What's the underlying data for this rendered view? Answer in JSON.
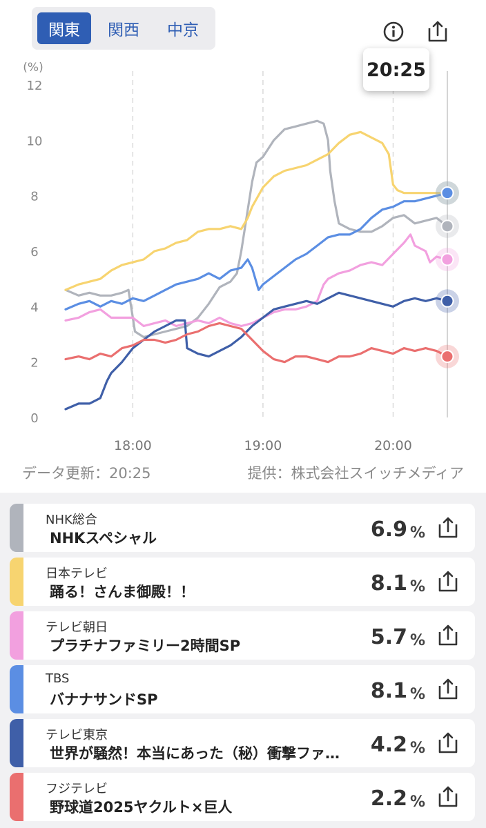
{
  "tabs": [
    {
      "label": "関東",
      "active": true
    },
    {
      "label": "関西",
      "active": false
    },
    {
      "label": "中京",
      "active": false
    }
  ],
  "icons": {
    "info": "info-icon",
    "share": "share-icon"
  },
  "tooltip_time": "20:25",
  "update_text": "データ更新：20:25",
  "provider_text": "提供：株式会社スイッチメディア",
  "chart_data": {
    "type": "line",
    "ylabel": "(%)",
    "ylim": [
      0,
      12
    ],
    "yticks": [
      0,
      2,
      4,
      6,
      8,
      10,
      12
    ],
    "xlim": [
      "17:29",
      "20:25"
    ],
    "xticks": [
      "18:00",
      "19:00",
      "20:00"
    ],
    "grid": "dashed vertical at hours",
    "cursor_time": "20:25",
    "series": [
      {
        "key": "nhk",
        "color": "#b0b4bc",
        "final": 6.9,
        "points": [
          [
            "17:29",
            4.6
          ],
          [
            "17:35",
            4.4
          ],
          [
            "17:40",
            4.5
          ],
          [
            "17:45",
            4.4
          ],
          [
            "17:50",
            4.4
          ],
          [
            "17:55",
            4.5
          ],
          [
            "17:58",
            4.6
          ],
          [
            "18:00",
            3.6
          ],
          [
            "18:01",
            3.1
          ],
          [
            "18:05",
            2.9
          ],
          [
            "18:10",
            3.0
          ],
          [
            "18:15",
            3.1
          ],
          [
            "18:20",
            3.2
          ],
          [
            "18:25",
            3.3
          ],
          [
            "18:30",
            3.6
          ],
          [
            "18:35",
            4.1
          ],
          [
            "18:40",
            4.7
          ],
          [
            "18:45",
            4.9
          ],
          [
            "18:48",
            5.2
          ],
          [
            "18:50",
            6.0
          ],
          [
            "18:52",
            7.0
          ],
          [
            "18:55",
            8.5
          ],
          [
            "18:57",
            9.2
          ],
          [
            "19:00",
            9.4
          ],
          [
            "19:05",
            10.0
          ],
          [
            "19:10",
            10.4
          ],
          [
            "19:15",
            10.5
          ],
          [
            "19:20",
            10.6
          ],
          [
            "19:25",
            10.7
          ],
          [
            "19:28",
            10.6
          ],
          [
            "19:30",
            10.0
          ],
          [
            "19:31",
            8.9
          ],
          [
            "19:33",
            7.8
          ],
          [
            "19:35",
            7.0
          ],
          [
            "19:40",
            6.8
          ],
          [
            "19:45",
            6.7
          ],
          [
            "19:50",
            6.7
          ],
          [
            "19:55",
            6.9
          ],
          [
            "20:00",
            7.2
          ],
          [
            "20:05",
            7.3
          ],
          [
            "20:10",
            7.0
          ],
          [
            "20:15",
            7.1
          ],
          [
            "20:20",
            7.2
          ],
          [
            "20:25",
            6.9
          ]
        ]
      },
      {
        "key": "ntv",
        "color": "#f7d470",
        "final": 8.1,
        "points": [
          [
            "17:29",
            4.6
          ],
          [
            "17:35",
            4.8
          ],
          [
            "17:40",
            4.9
          ],
          [
            "17:45",
            5.0
          ],
          [
            "17:50",
            5.3
          ],
          [
            "17:55",
            5.5
          ],
          [
            "18:00",
            5.6
          ],
          [
            "18:05",
            5.7
          ],
          [
            "18:10",
            6.0
          ],
          [
            "18:15",
            6.1
          ],
          [
            "18:20",
            6.3
          ],
          [
            "18:25",
            6.4
          ],
          [
            "18:30",
            6.7
          ],
          [
            "18:35",
            6.8
          ],
          [
            "18:40",
            6.8
          ],
          [
            "18:45",
            6.9
          ],
          [
            "18:50",
            6.8
          ],
          [
            "18:53",
            7.2
          ],
          [
            "18:55",
            7.6
          ],
          [
            "19:00",
            8.3
          ],
          [
            "19:05",
            8.7
          ],
          [
            "19:10",
            8.9
          ],
          [
            "19:15",
            9.0
          ],
          [
            "19:20",
            9.1
          ],
          [
            "19:25",
            9.3
          ],
          [
            "19:30",
            9.5
          ],
          [
            "19:35",
            9.9
          ],
          [
            "19:40",
            10.2
          ],
          [
            "19:45",
            10.3
          ],
          [
            "19:50",
            10.1
          ],
          [
            "19:55",
            9.9
          ],
          [
            "19:58",
            9.5
          ],
          [
            "20:00",
            8.4
          ],
          [
            "20:02",
            8.2
          ],
          [
            "20:05",
            8.1
          ],
          [
            "20:10",
            8.1
          ],
          [
            "20:15",
            8.1
          ],
          [
            "20:20",
            8.1
          ],
          [
            "20:25",
            8.1
          ]
        ]
      },
      {
        "key": "ex",
        "color": "#f2a0df",
        "final": 5.7,
        "points": [
          [
            "17:29",
            3.5
          ],
          [
            "17:35",
            3.6
          ],
          [
            "17:40",
            3.8
          ],
          [
            "17:45",
            3.9
          ],
          [
            "17:50",
            3.6
          ],
          [
            "17:55",
            3.6
          ],
          [
            "18:00",
            3.6
          ],
          [
            "18:05",
            3.3
          ],
          [
            "18:10",
            3.4
          ],
          [
            "18:15",
            3.5
          ],
          [
            "18:20",
            3.3
          ],
          [
            "18:25",
            3.4
          ],
          [
            "18:30",
            3.5
          ],
          [
            "18:35",
            3.4
          ],
          [
            "18:40",
            3.6
          ],
          [
            "18:45",
            3.4
          ],
          [
            "18:50",
            3.3
          ],
          [
            "18:55",
            3.4
          ],
          [
            "19:00",
            3.6
          ],
          [
            "19:05",
            3.8
          ],
          [
            "19:10",
            3.9
          ],
          [
            "19:15",
            3.9
          ],
          [
            "19:20",
            4.0
          ],
          [
            "19:25",
            4.2
          ],
          [
            "19:28",
            4.8
          ],
          [
            "19:30",
            5.0
          ],
          [
            "19:35",
            5.2
          ],
          [
            "19:40",
            5.3
          ],
          [
            "19:45",
            5.5
          ],
          [
            "19:50",
            5.6
          ],
          [
            "19:55",
            5.5
          ],
          [
            "20:00",
            5.9
          ],
          [
            "20:05",
            6.3
          ],
          [
            "20:08",
            6.6
          ],
          [
            "20:10",
            6.2
          ],
          [
            "20:15",
            6.0
          ],
          [
            "20:17",
            5.6
          ],
          [
            "20:20",
            5.8
          ],
          [
            "20:25",
            5.7
          ]
        ]
      },
      {
        "key": "tbs",
        "color": "#5b8ee3",
        "final": 8.1,
        "points": [
          [
            "17:29",
            3.9
          ],
          [
            "17:35",
            4.1
          ],
          [
            "17:40",
            4.2
          ],
          [
            "17:45",
            4.0
          ],
          [
            "17:50",
            4.2
          ],
          [
            "17:55",
            4.1
          ],
          [
            "18:00",
            4.3
          ],
          [
            "18:05",
            4.2
          ],
          [
            "18:10",
            4.4
          ],
          [
            "18:15",
            4.6
          ],
          [
            "18:20",
            4.8
          ],
          [
            "18:25",
            4.9
          ],
          [
            "18:30",
            5.0
          ],
          [
            "18:35",
            5.2
          ],
          [
            "18:40",
            5.0
          ],
          [
            "18:45",
            5.3
          ],
          [
            "18:50",
            5.4
          ],
          [
            "18:53",
            5.7
          ],
          [
            "18:55",
            5.4
          ],
          [
            "18:58",
            4.6
          ],
          [
            "19:00",
            4.8
          ],
          [
            "19:05",
            5.1
          ],
          [
            "19:10",
            5.4
          ],
          [
            "19:15",
            5.7
          ],
          [
            "19:20",
            5.9
          ],
          [
            "19:25",
            6.2
          ],
          [
            "19:30",
            6.5
          ],
          [
            "19:35",
            6.6
          ],
          [
            "19:40",
            6.6
          ],
          [
            "19:45",
            6.8
          ],
          [
            "19:50",
            7.2
          ],
          [
            "19:55",
            7.5
          ],
          [
            "20:00",
            7.6
          ],
          [
            "20:05",
            7.8
          ],
          [
            "20:10",
            7.8
          ],
          [
            "20:15",
            7.9
          ],
          [
            "20:20",
            8.0
          ],
          [
            "20:25",
            8.1
          ]
        ]
      },
      {
        "key": "tx",
        "color": "#3f5fa8",
        "final": 4.2,
        "points": [
          [
            "17:29",
            0.3
          ],
          [
            "17:35",
            0.5
          ],
          [
            "17:40",
            0.5
          ],
          [
            "17:45",
            0.7
          ],
          [
            "17:48",
            1.3
          ],
          [
            "17:50",
            1.6
          ],
          [
            "17:55",
            2.0
          ],
          [
            "18:00",
            2.5
          ],
          [
            "18:05",
            2.8
          ],
          [
            "18:10",
            3.1
          ],
          [
            "18:15",
            3.3
          ],
          [
            "18:20",
            3.5
          ],
          [
            "18:24",
            3.5
          ],
          [
            "18:25",
            2.5
          ],
          [
            "18:30",
            2.3
          ],
          [
            "18:35",
            2.2
          ],
          [
            "18:40",
            2.4
          ],
          [
            "18:45",
            2.6
          ],
          [
            "18:50",
            2.9
          ],
          [
            "18:55",
            3.3
          ],
          [
            "19:00",
            3.6
          ],
          [
            "19:05",
            3.9
          ],
          [
            "19:10",
            4.0
          ],
          [
            "19:15",
            4.1
          ],
          [
            "19:20",
            4.2
          ],
          [
            "19:25",
            4.1
          ],
          [
            "19:30",
            4.3
          ],
          [
            "19:35",
            4.5
          ],
          [
            "19:40",
            4.4
          ],
          [
            "19:45",
            4.3
          ],
          [
            "19:50",
            4.2
          ],
          [
            "19:55",
            4.1
          ],
          [
            "20:00",
            4.0
          ],
          [
            "20:05",
            4.2
          ],
          [
            "20:10",
            4.3
          ],
          [
            "20:15",
            4.2
          ],
          [
            "20:20",
            4.3
          ],
          [
            "20:25",
            4.2
          ]
        ]
      },
      {
        "key": "cx",
        "color": "#ea6f6f",
        "final": 2.2,
        "points": [
          [
            "17:29",
            2.1
          ],
          [
            "17:35",
            2.2
          ],
          [
            "17:40",
            2.1
          ],
          [
            "17:45",
            2.3
          ],
          [
            "17:50",
            2.2
          ],
          [
            "17:55",
            2.5
          ],
          [
            "18:00",
            2.6
          ],
          [
            "18:05",
            2.8
          ],
          [
            "18:10",
            2.8
          ],
          [
            "18:15",
            2.7
          ],
          [
            "18:20",
            2.8
          ],
          [
            "18:25",
            3.0
          ],
          [
            "18:30",
            3.1
          ],
          [
            "18:35",
            3.3
          ],
          [
            "18:40",
            3.4
          ],
          [
            "18:45",
            3.3
          ],
          [
            "18:50",
            3.2
          ],
          [
            "18:55",
            2.8
          ],
          [
            "19:00",
            2.4
          ],
          [
            "19:05",
            2.1
          ],
          [
            "19:10",
            2.0
          ],
          [
            "19:15",
            2.2
          ],
          [
            "19:20",
            2.2
          ],
          [
            "19:25",
            2.1
          ],
          [
            "19:30",
            2.0
          ],
          [
            "19:35",
            2.2
          ],
          [
            "19:40",
            2.2
          ],
          [
            "19:45",
            2.3
          ],
          [
            "19:50",
            2.5
          ],
          [
            "19:55",
            2.4
          ],
          [
            "20:00",
            2.3
          ],
          [
            "20:05",
            2.5
          ],
          [
            "20:10",
            2.4
          ],
          [
            "20:15",
            2.5
          ],
          [
            "20:20",
            2.4
          ],
          [
            "20:25",
            2.2
          ]
        ]
      }
    ]
  },
  "programs": [
    {
      "channel": "NHK総合",
      "title": "NHKスペシャル",
      "value": "6.9",
      "unit": "%",
      "color": "#b0b4bc"
    },
    {
      "channel": "日本テレビ",
      "title": "踊る！さんま御殿！！",
      "value": "8.1",
      "unit": "%",
      "color": "#f7d470"
    },
    {
      "channel": "テレビ朝日",
      "title": "プラチナファミリー2時間SP",
      "value": "5.7",
      "unit": "%",
      "color": "#f2a0df"
    },
    {
      "channel": "TBS",
      "title": "バナナサンドSP",
      "value": "8.1",
      "unit": "%",
      "color": "#5b8ee3"
    },
    {
      "channel": "テレビ東京",
      "title": "世界が騒然！本当にあった（秘）衝撃ファ…",
      "value": "4.2",
      "unit": "%",
      "color": "#3f5fa8"
    },
    {
      "channel": "フジテレビ",
      "title": "野球道2025ヤクルト×巨人",
      "value": "2.2",
      "unit": "%",
      "color": "#ea6f6f"
    }
  ]
}
